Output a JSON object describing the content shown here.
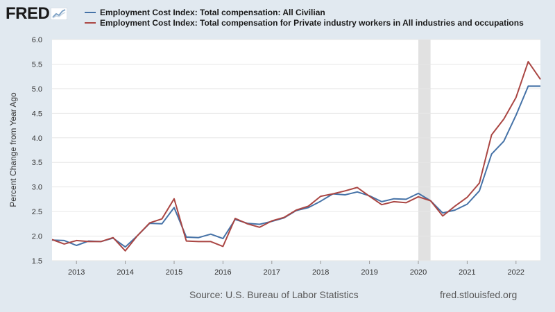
{
  "header": {
    "logo_text": "FRED",
    "logo_icon": "chart-line-icon"
  },
  "legend": {
    "items": [
      {
        "label": "Employment Cost Index: Total compensation: All Civilian",
        "color": "#4572a7"
      },
      {
        "label": "Employment Cost Index: Total compensation for Private industry workers in All industries and occupations",
        "color": "#aa4643"
      }
    ]
  },
  "chart_data": {
    "type": "line",
    "title": "",
    "xlabel": "",
    "ylabel": "Percent Change from Year Ago",
    "ylim": [
      1.5,
      6.0
    ],
    "yticks": [
      "1.5",
      "2.0",
      "2.5",
      "3.0",
      "3.5",
      "4.0",
      "4.5",
      "5.0",
      "5.5",
      "6.0"
    ],
    "xticks": [
      "2013",
      "2014",
      "2015",
      "2016",
      "2017",
      "2018",
      "2019",
      "2020",
      "2021",
      "2022"
    ],
    "x": [
      "2012 Q3",
      "2012 Q4",
      "2013 Q1",
      "2013 Q2",
      "2013 Q3",
      "2013 Q4",
      "2014 Q1",
      "2014 Q2",
      "2014 Q3",
      "2014 Q4",
      "2015 Q1",
      "2015 Q2",
      "2015 Q3",
      "2015 Q4",
      "2016 Q1",
      "2016 Q2",
      "2016 Q3",
      "2016 Q4",
      "2017 Q1",
      "2017 Q2",
      "2017 Q3",
      "2017 Q4",
      "2018 Q1",
      "2018 Q2",
      "2018 Q3",
      "2018 Q4",
      "2019 Q1",
      "2019 Q2",
      "2019 Q3",
      "2019 Q4",
      "2020 Q1",
      "2020 Q2",
      "2020 Q3",
      "2020 Q4",
      "2021 Q1",
      "2021 Q2",
      "2021 Q3",
      "2021 Q4",
      "2022 Q1",
      "2022 Q2",
      "2022 Q3"
    ],
    "series": [
      {
        "name": "Employment Cost Index: Total compensation: All Civilian",
        "color": "#4572a7",
        "values": [
          1.92,
          1.91,
          1.81,
          1.9,
          1.89,
          1.96,
          1.78,
          2.01,
          2.26,
          2.25,
          2.58,
          1.98,
          1.97,
          2.04,
          1.95,
          2.34,
          2.26,
          2.24,
          2.3,
          2.37,
          2.52,
          2.58,
          2.71,
          2.86,
          2.84,
          2.9,
          2.82,
          2.7,
          2.76,
          2.75,
          2.87,
          2.72,
          2.47,
          2.53,
          2.65,
          2.92,
          3.67,
          3.93,
          4.46,
          5.05,
          5.05
        ]
      },
      {
        "name": "Employment Cost Index: Total compensation for Private industry workers in All industries and occupations",
        "color": "#aa4643",
        "values": [
          1.93,
          1.84,
          1.91,
          1.89,
          1.89,
          1.97,
          1.7,
          2.01,
          2.27,
          2.35,
          2.76,
          1.9,
          1.89,
          1.89,
          1.79,
          2.36,
          2.25,
          2.18,
          2.31,
          2.38,
          2.53,
          2.61,
          2.81,
          2.86,
          2.92,
          2.99,
          2.81,
          2.64,
          2.7,
          2.68,
          2.8,
          2.72,
          2.41,
          2.61,
          2.79,
          3.08,
          4.06,
          4.38,
          4.82,
          5.55,
          5.19
        ]
      }
    ],
    "recession": {
      "from": "2020 Q1",
      "to": "2020 Q2"
    },
    "grid": "horizontal",
    "legend_position": "top"
  },
  "footer": {
    "source": "Source: U.S. Bureau of Labor Statistics",
    "site": "fred.stlouisfed.org"
  }
}
